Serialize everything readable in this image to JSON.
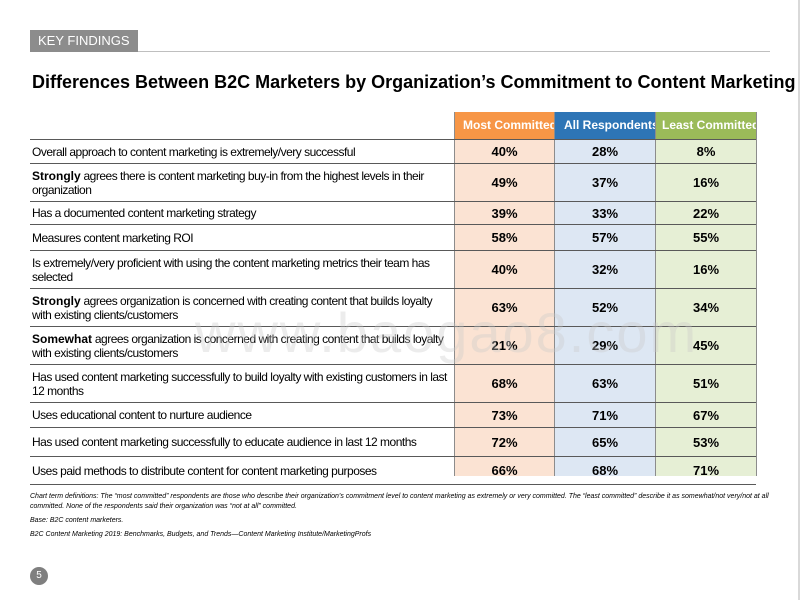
{
  "section_tag": "KEY FINDINGS",
  "title": "Differences Between B2C Marketers by Organization’s Commitment to Content Marketing",
  "watermark": "www.baogao8.com",
  "columns": [
    "Most Committed",
    "All Respondents",
    "Least Committed"
  ],
  "colors": {
    "most": "#f79646",
    "all": "#2e75b6",
    "least": "#9bbb59"
  },
  "rows": [
    {
      "bold": "",
      "text": "Overall approach to content marketing is extremely/very successful",
      "v": [
        "40%",
        "28%",
        "8%"
      ]
    },
    {
      "bold": "Strongly",
      "text": " agrees there is content marketing buy-in from the highest levels in their organization",
      "v": [
        "49%",
        "37%",
        "16%"
      ]
    },
    {
      "bold": "",
      "text": "Has a documented content marketing strategy",
      "v": [
        "39%",
        "33%",
        "22%"
      ]
    },
    {
      "bold": "",
      "text": "Measures content marketing ROI",
      "v": [
        "58%",
        "57%",
        "55%"
      ]
    },
    {
      "bold": "",
      "text": "Is extremely/very proficient with using the content marketing metrics their team has selected",
      "v": [
        "40%",
        "32%",
        "16%"
      ]
    },
    {
      "bold": "Strongly",
      "text": " agrees organization is concerned with creating content that builds loyalty with existing clients/customers",
      "v": [
        "63%",
        "52%",
        "34%"
      ]
    },
    {
      "bold": "Somewhat",
      "text": " agrees organization is concerned with creating content that builds loyalty with existing clients/customers",
      "v": [
        "21%",
        "29%",
        "45%"
      ]
    },
    {
      "bold": "",
      "text": "Has used content marketing successfully to build loyalty with existing customers in last 12 months",
      "v": [
        "68%",
        "63%",
        "51%"
      ]
    },
    {
      "bold": "",
      "text": "Uses educational content to nurture audience",
      "v": [
        "73%",
        "71%",
        "67%"
      ]
    },
    {
      "bold": "",
      "text": "Has used content marketing successfully to educate audience in last 12 months",
      "v": [
        "72%",
        "65%",
        "53%"
      ]
    },
    {
      "bold": "",
      "text": "Uses paid methods to distribute content for content marketing purposes",
      "v": [
        "66%",
        "68%",
        "71%"
      ]
    }
  ],
  "notes": {
    "definitions": "Chart term definitions: The “most committed” respondents are those who describe their organization’s commitment level to content marketing as extremely or very committed. The “least committed” describe it as somewhat/not very/not at all",
    "definitions2": "committed. None of the respondents said their organization was “not at all” committed.",
    "base": "Base: B2C content marketers.",
    "source": "B2C Content Marketing 2019: Benchmarks, Budgets, and Trends—Content Marketing Institute/MarketingProfs"
  },
  "page_number": "5"
}
